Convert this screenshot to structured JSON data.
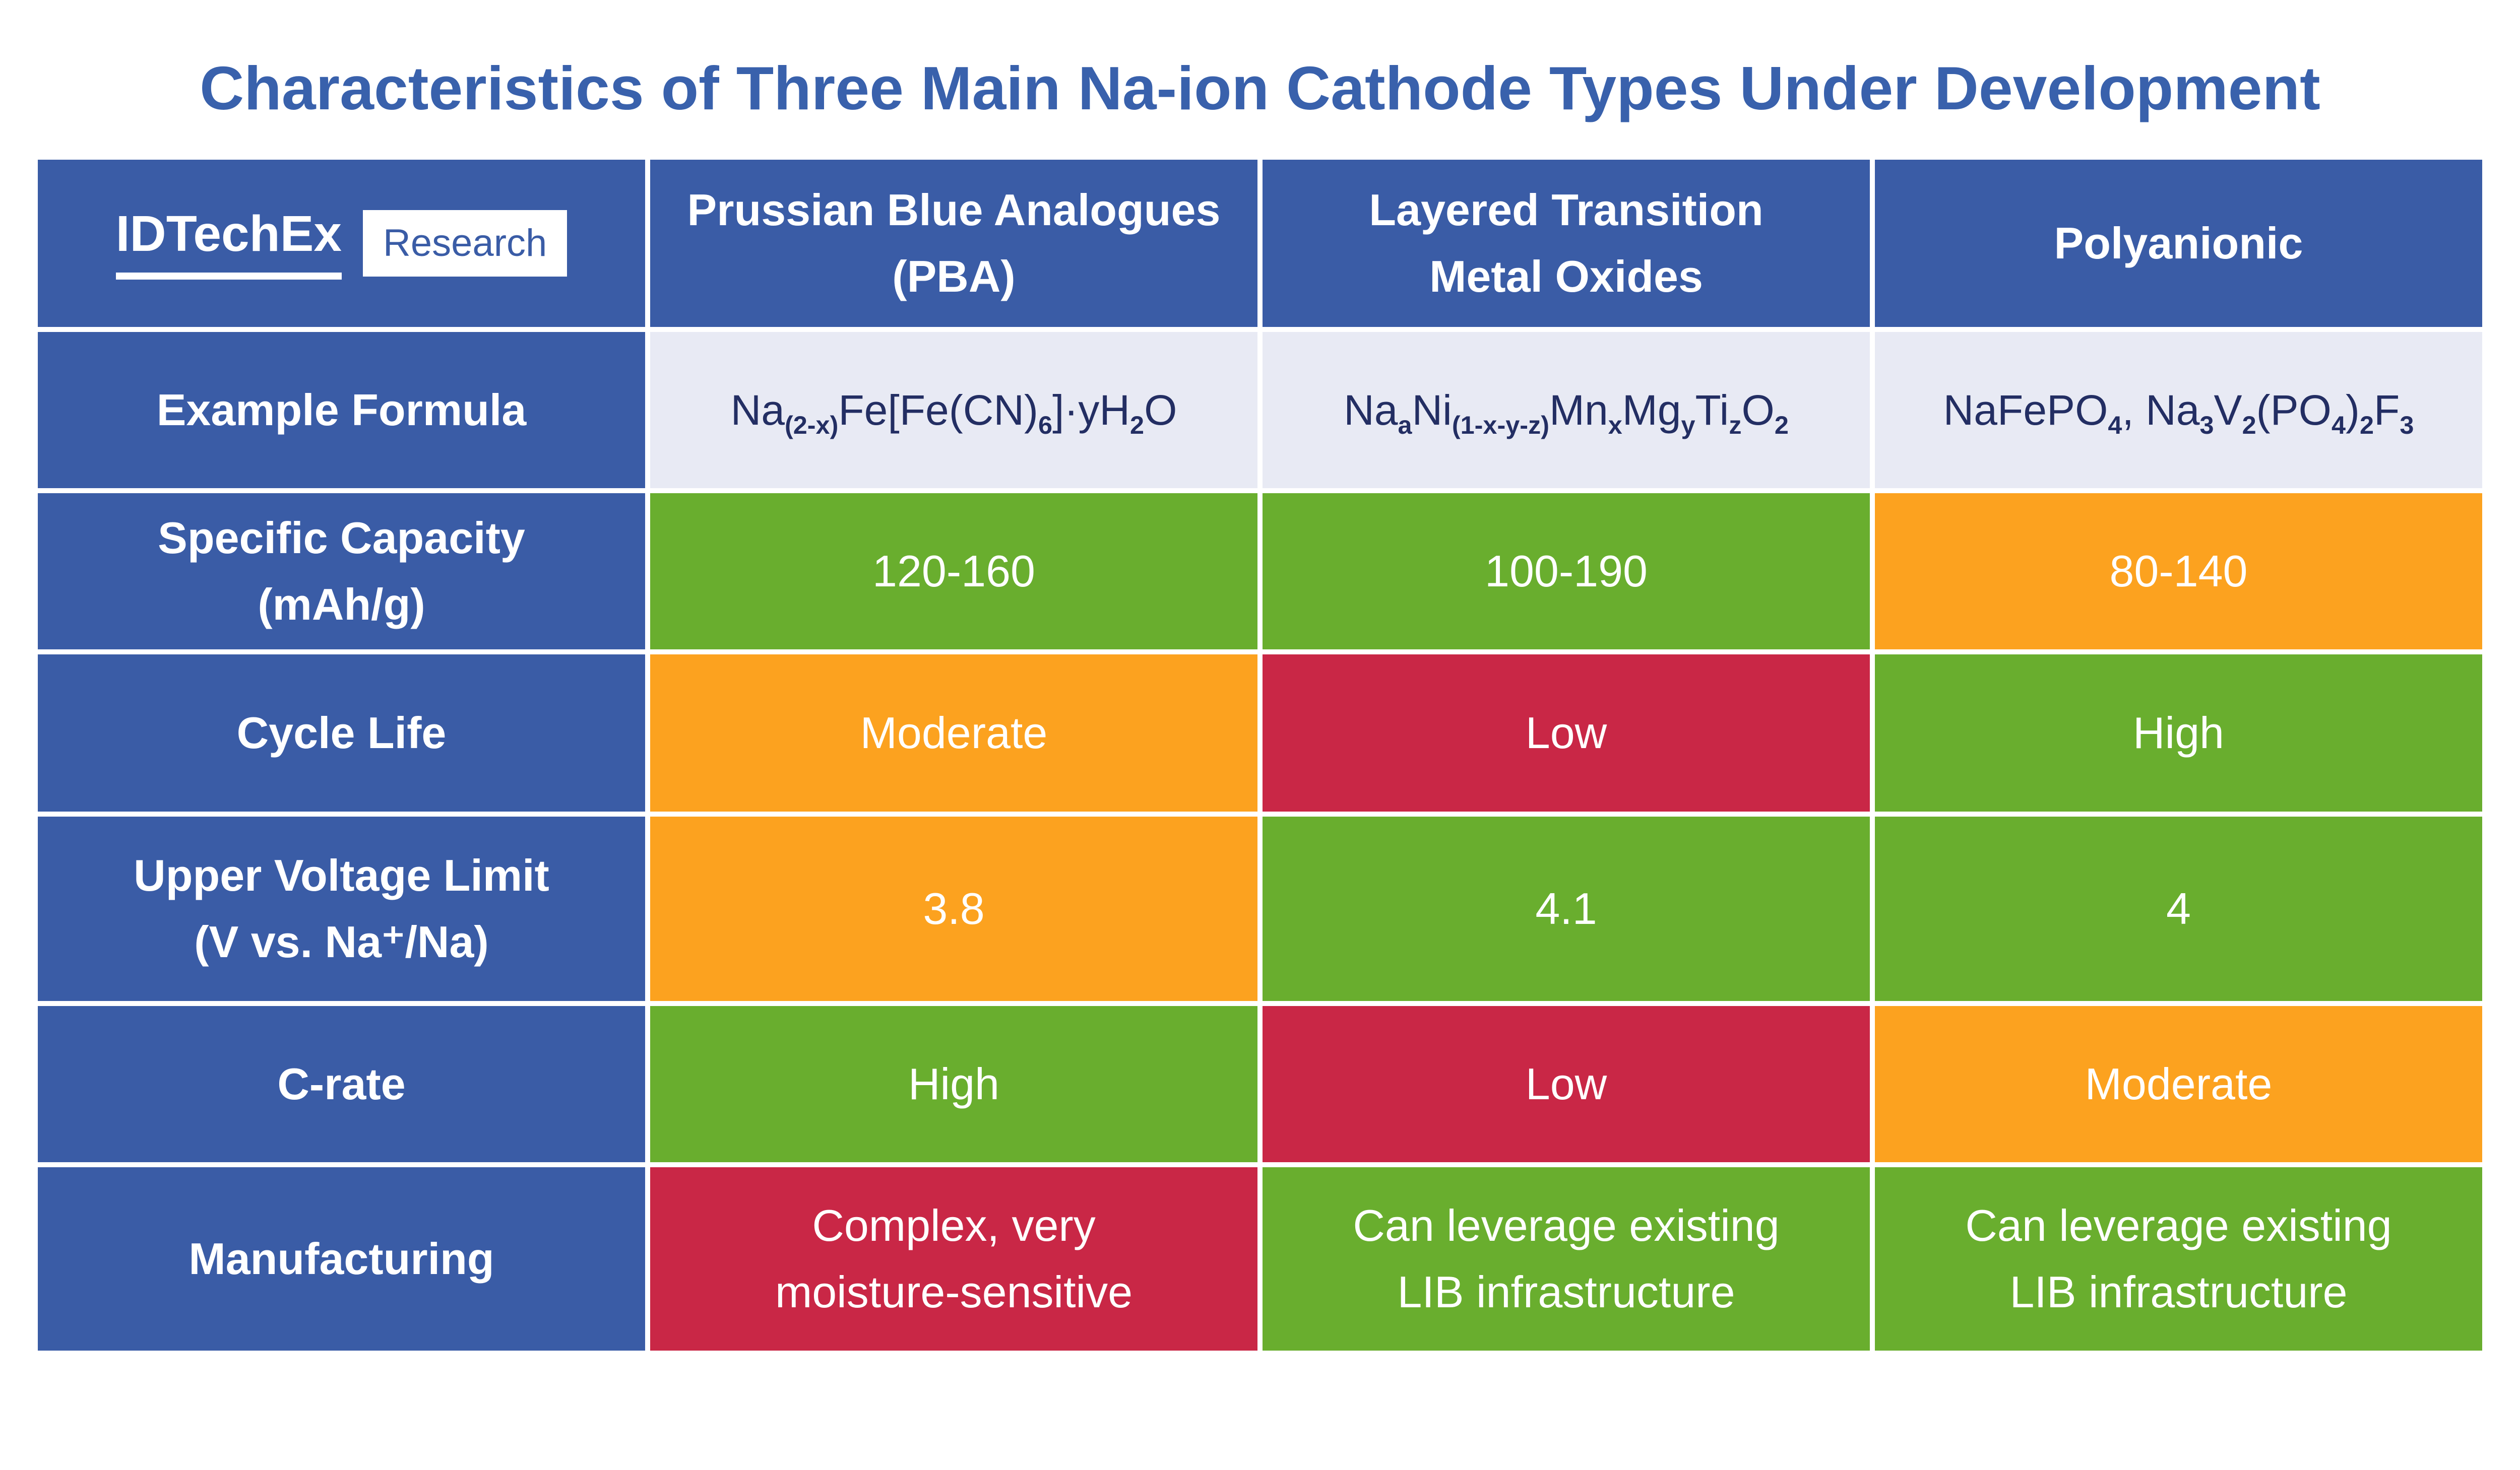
{
  "title": "Characteristics of Three Main Na-ion Cathode Types Under Development",
  "colors": {
    "blue": "#3A5CA6",
    "title_blue": "#3961AC",
    "green": "#69AE2E",
    "orange": "#FCA21F",
    "red": "#C92746",
    "light_bg": "#E8EAF4",
    "navy_text": "#232E63"
  },
  "table": {
    "logo": {
      "brand": "IDTechEx",
      "suffix": "Research"
    },
    "col_headers": [
      [
        "Prussian Blue Analogues",
        "(PBA)"
      ],
      [
        "Layered Transition",
        "Metal Oxides"
      ],
      [
        "Polyanionic"
      ]
    ],
    "rows": [
      {
        "label": [
          "Example Formula"
        ],
        "cells": [
          {
            "formula": [
              {
                "t": "Na"
              },
              {
                "s": "(2-x)"
              },
              {
                "t": "Fe[Fe(CN)"
              },
              {
                "s": "6"
              },
              {
                "t": "]·yH"
              },
              {
                "s": "2"
              },
              {
                "t": "O"
              }
            ]
          },
          {
            "formula": [
              {
                "t": "Na"
              },
              {
                "s": "a"
              },
              {
                "t": "Ni"
              },
              {
                "s": "(1-x-y-z)"
              },
              {
                "t": "Mn"
              },
              {
                "s": "x"
              },
              {
                "t": "Mg"
              },
              {
                "s": "y"
              },
              {
                "t": "Ti"
              },
              {
                "s": "z"
              },
              {
                "t": "O"
              },
              {
                "s": "2"
              }
            ]
          },
          {
            "formula": [
              {
                "t": "NaFePO"
              },
              {
                "s": "4"
              },
              {
                "t": ", Na"
              },
              {
                "s": "3"
              },
              {
                "t": "V"
              },
              {
                "s": "2"
              },
              {
                "t": "(PO"
              },
              {
                "s": "4"
              },
              {
                "t": ")"
              },
              {
                "s": "2"
              },
              {
                "t": "F"
              },
              {
                "s": "3"
              }
            ]
          }
        ]
      },
      {
        "label": [
          "Specific Capacity",
          "(mAh/g)"
        ],
        "cells": [
          {
            "text": "120-160",
            "color": "green"
          },
          {
            "text": "100-190",
            "color": "green"
          },
          {
            "text": "80-140",
            "color": "orange"
          }
        ]
      },
      {
        "label": [
          "Cycle Life"
        ],
        "cells": [
          {
            "text": "Moderate",
            "color": "orange"
          },
          {
            "text": "Low",
            "color": "red"
          },
          {
            "text": "High",
            "color": "green"
          }
        ]
      },
      {
        "label": [
          "Upper Voltage Limit",
          "(V vs. Na⁺/Na)"
        ],
        "cells": [
          {
            "text": "3.8",
            "color": "orange"
          },
          {
            "text": "4.1",
            "color": "green"
          },
          {
            "text": "4",
            "color": "green"
          }
        ]
      },
      {
        "label": [
          "C-rate"
        ],
        "cells": [
          {
            "text": "High",
            "color": "green"
          },
          {
            "text": "Low",
            "color": "red"
          },
          {
            "text": "Moderate",
            "color": "orange"
          }
        ]
      },
      {
        "label": [
          "Manufacturing"
        ],
        "cells": [
          {
            "text": [
              "Complex, very",
              "moisture-sensitive"
            ],
            "color": "red"
          },
          {
            "text": [
              "Can leverage existing",
              "LIB infrastructure"
            ],
            "color": "green"
          },
          {
            "text": [
              "Can leverage existing",
              "LIB infrastructure"
            ],
            "color": "green"
          }
        ]
      }
    ]
  },
  "chart_data": {
    "type": "table",
    "title": "Characteristics of Three Main Na-ion Cathode Types Under Development",
    "columns": [
      "Prussian Blue Analogues (PBA)",
      "Layered Transition Metal Oxides",
      "Polyanionic"
    ],
    "rows": [
      {
        "label": "Example Formula",
        "values": [
          "Na(2-x)Fe[Fe(CN)6]·yH2O",
          "NaaNi(1-x-y-z)MnxMgyTizO2",
          "NaFePO4, Na3V2(PO4)2F3"
        ]
      },
      {
        "label": "Specific Capacity (mAh/g)",
        "values": [
          "120-160",
          "100-190",
          "80-140"
        ],
        "ratings": [
          "good",
          "good",
          "moderate"
        ]
      },
      {
        "label": "Cycle Life",
        "values": [
          "Moderate",
          "Low",
          "High"
        ],
        "ratings": [
          "moderate",
          "poor",
          "good"
        ]
      },
      {
        "label": "Upper Voltage Limit (V vs. Na+/Na)",
        "values": [
          "3.8",
          "4.1",
          "4"
        ],
        "ratings": [
          "moderate",
          "good",
          "good"
        ]
      },
      {
        "label": "C-rate",
        "values": [
          "High",
          "Low",
          "Moderate"
        ],
        "ratings": [
          "good",
          "poor",
          "moderate"
        ]
      },
      {
        "label": "Manufacturing",
        "values": [
          "Complex, very moisture-sensitive",
          "Can leverage existing LIB infrastructure",
          "Can leverage existing LIB infrastructure"
        ],
        "ratings": [
          "poor",
          "good",
          "good"
        ]
      }
    ],
    "color_coding": {
      "good": "green",
      "moderate": "orange",
      "poor": "red"
    },
    "legend_position": "none",
    "grid": false
  }
}
